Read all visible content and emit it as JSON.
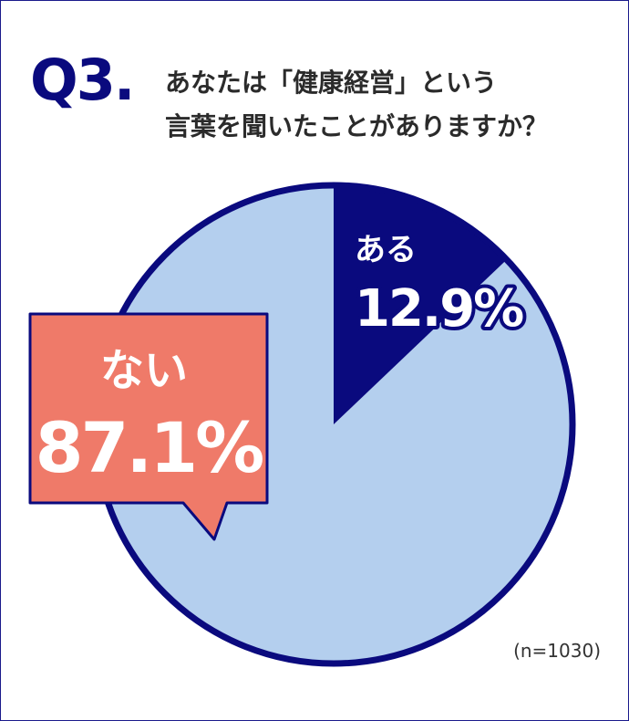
{
  "question": {
    "number": "Q3.",
    "lines": [
      "あなたは「健康経営」という",
      "言葉を聞いたことがありますか？"
    ]
  },
  "note": "(n=1030)",
  "colors": {
    "navy": "#0a0a7e",
    "light_blue": "#b4cfee",
    "salmon": "#ef7a69",
    "text": "#2b2b2b"
  },
  "chart_data": {
    "type": "pie",
    "title": "あなたは「健康経営」という言葉を聞いたことがありますか？",
    "slices": [
      {
        "label": "ある",
        "value": 12.9,
        "display": "12.9%",
        "color": "#0a0a7e"
      },
      {
        "label": "ない",
        "value": 87.1,
        "display": "87.1%",
        "color": "#b4cfee"
      }
    ],
    "start": "12 o'clock, clockwise",
    "callout": "ない"
  }
}
